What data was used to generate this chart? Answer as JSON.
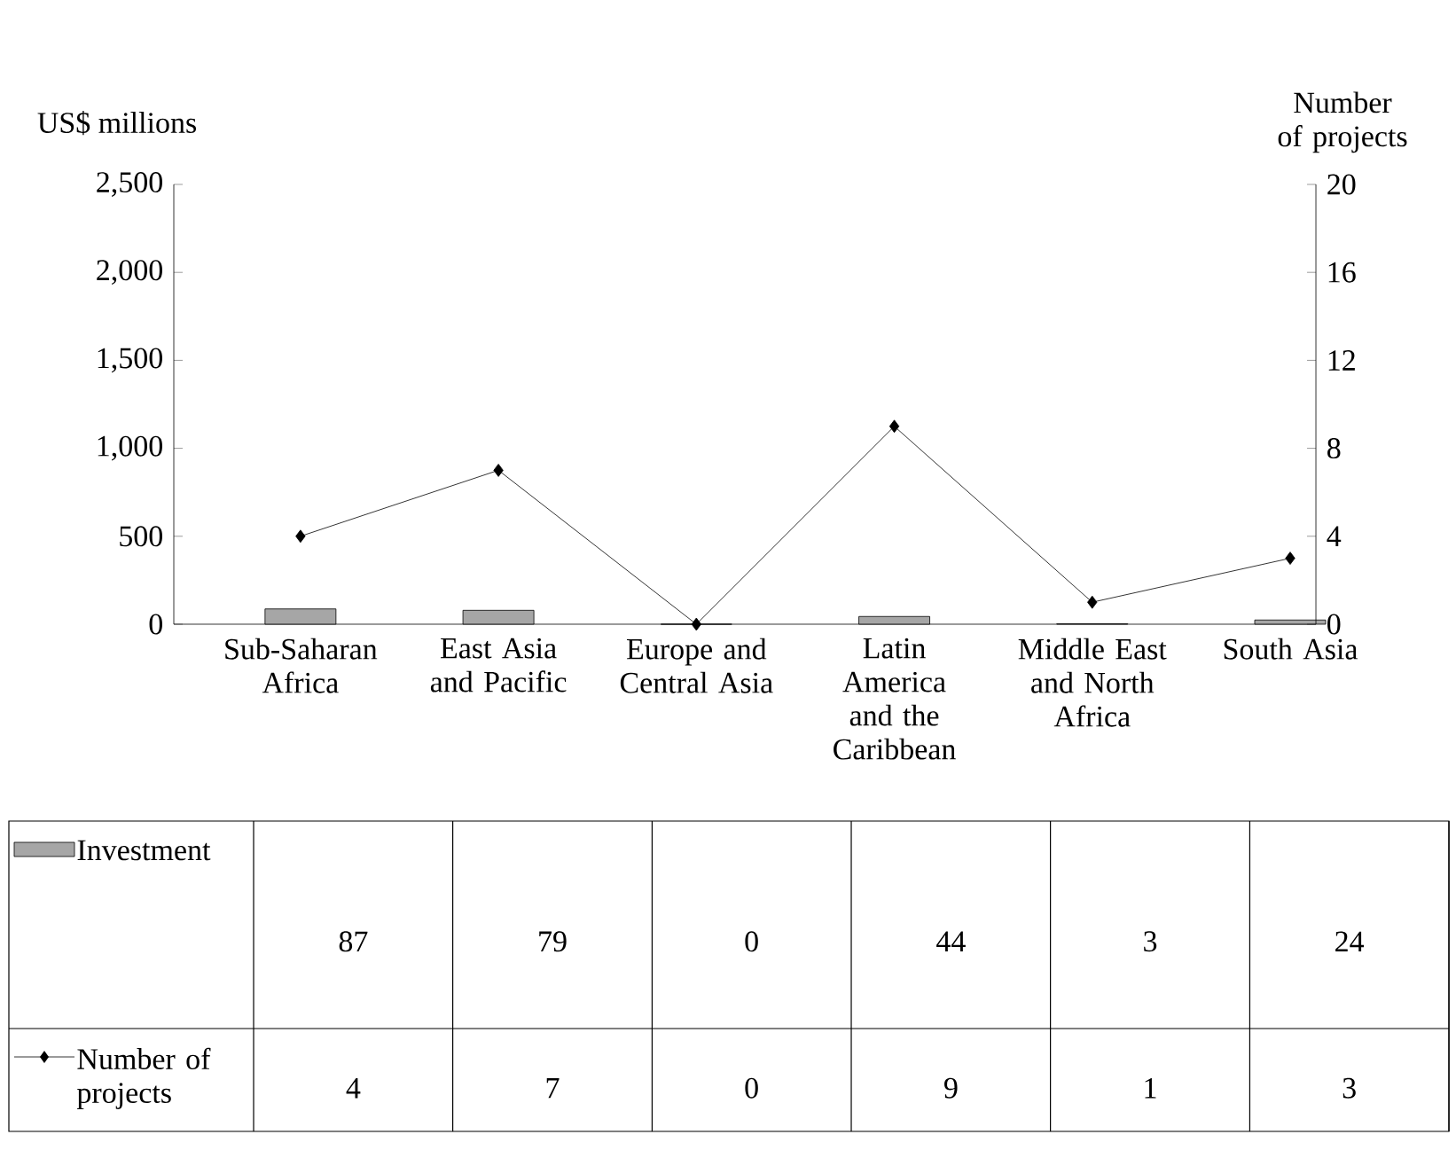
{
  "chart_data": {
    "type": "bar",
    "ylabel": "US$ millions",
    "y2label": "Number of projects",
    "categories": [
      "Sub-Saharan Africa",
      "East Asia and Pacific",
      "Europe and Central Asia",
      "Latin America and the Caribbean",
      "Middle East and North Africa",
      "South Asia"
    ],
    "series": [
      {
        "name": "Investment",
        "color": "#a6a6a6",
        "values": [
          87,
          79,
          0,
          44,
          3,
          24
        ]
      },
      {
        "name": "Number of projects",
        "type": "line",
        "axis": "y2",
        "color": "#000000",
        "marker": "diamond",
        "line_style": "solid",
        "values": [
          4,
          7,
          0,
          9,
          1,
          3
        ]
      }
    ],
    "ylim": [
      0,
      2500
    ],
    "yticks": [
      0,
      500,
      {
        "value": 1000,
        "label": "1,000"
      },
      {
        "value": 1500,
        "label": "1,500"
      },
      {
        "value": 2000,
        "label": "2,000"
      },
      {
        "value": 2500,
        "label": "2,500"
      }
    ],
    "y2lim": [
      0,
      20
    ],
    "y2ticks": [
      0,
      4,
      8,
      12,
      16,
      20
    ],
    "data_labels": true,
    "legend": "bottom"
  }
}
